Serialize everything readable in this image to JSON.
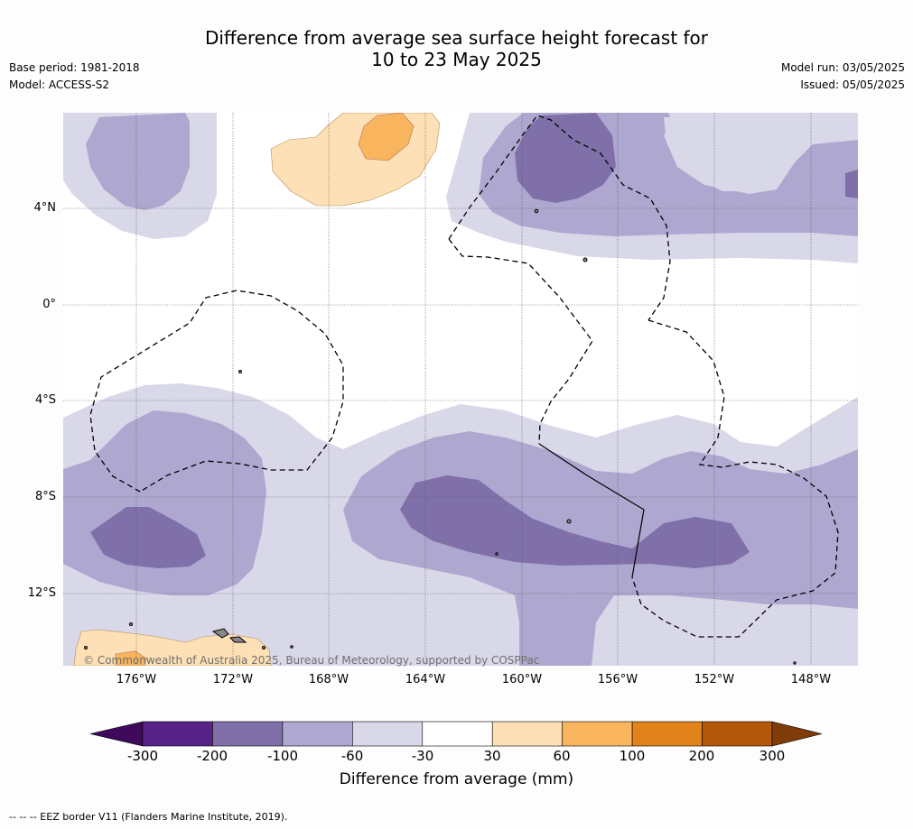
{
  "title_line1": "Difference from average sea surface height forecast for",
  "title_line2": "10 to 23 May 2025",
  "meta_left": {
    "base_period": "Base period: 1981-2018",
    "model": "Model: ACCESS-S2"
  },
  "meta_right": {
    "model_run": "Model run: 03/05/2025",
    "issued": "Issued: 05/05/2025"
  },
  "lat_ticks": [
    "4°N",
    "0°",
    "4°S",
    "8°S",
    "12°S"
  ],
  "lon_ticks": [
    "176°W",
    "172°W",
    "168°W",
    "164°W",
    "160°W",
    "156°W",
    "152°W",
    "148°W"
  ],
  "copyright": "© Commonwealth of Australia 2025, Bureau of Meteorology, supported by COSPPac",
  "colorbar": {
    "ticks": [
      "-300",
      "-200",
      "-100",
      "-60",
      "-30",
      "30",
      "60",
      "100",
      "200",
      "300"
    ],
    "label": "Difference from average (mm)",
    "colors": [
      "#3f0a5c",
      "#562287",
      "#7f70aa",
      "#aea8d0",
      "#d8d8e9",
      "#ffffff",
      "#fde0b5",
      "#f9b55d",
      "#e1821a",
      "#b3580a",
      "#7f3b08"
    ]
  },
  "footer": "--  --  -- EEZ border V11 (Flanders Marine Institute, 2019)."
}
